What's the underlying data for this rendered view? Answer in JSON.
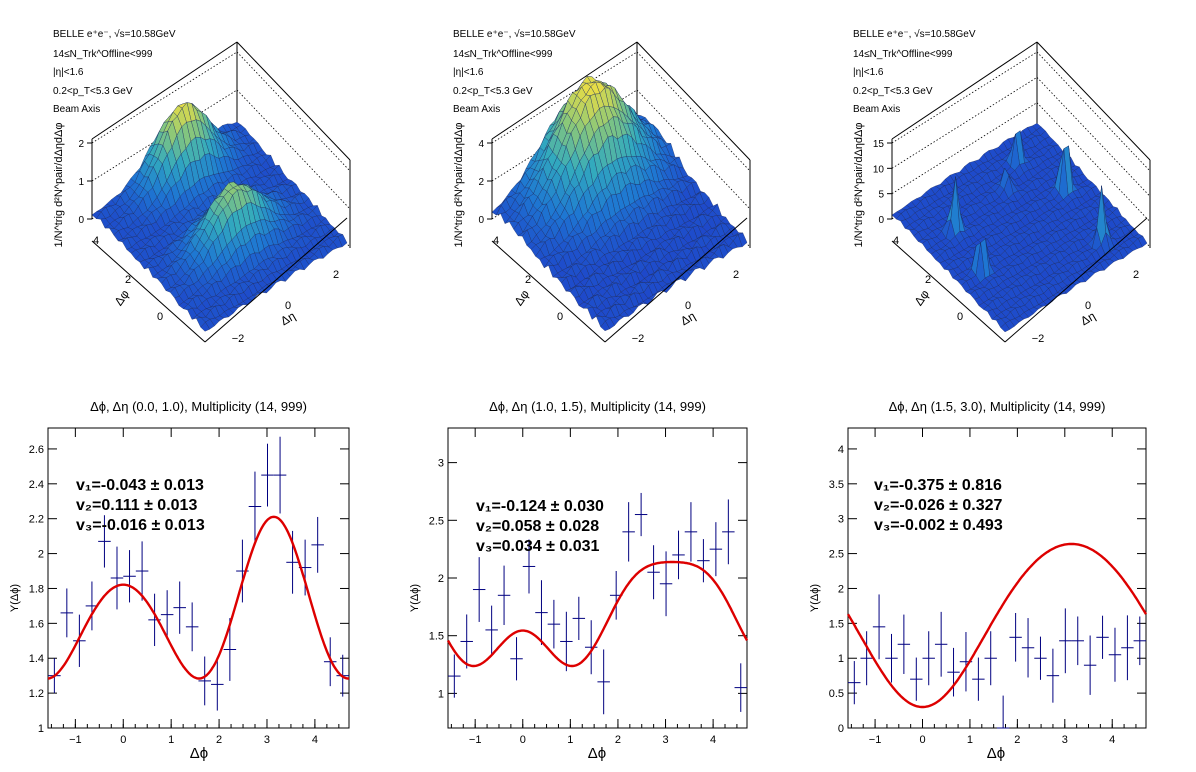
{
  "top_panels": [
    {
      "info_lines": [
        "BELLE e⁺e⁻, √s=10.58GeV",
        "14≤N_Trk^Offline<999",
        "|η|<1.6",
        "0.2<p_T<5.3 GeV",
        "Beam Axis"
      ],
      "zlabel": "1/N^trig d²N^pair/dΔηdΔφ",
      "z_ticks": [
        "0",
        "1",
        "2"
      ],
      "phi_ticks": [
        "0",
        "2",
        "4"
      ],
      "eta_ticks": [
        "−2",
        "0",
        "2"
      ],
      "xlabel": "Δφ",
      "ylabel": "Δη"
    },
    {
      "info_lines": [
        "BELLE e⁺e⁻, √s=10.58GeV",
        "14≤N_Trk^Offline<999",
        "|η|<1.6",
        "0.2<p_T<5.3 GeV",
        "Beam Axis"
      ],
      "zlabel": "1/N^trig d²N^pair/dΔηdΔφ",
      "z_ticks": [
        "0",
        "2",
        "4"
      ],
      "phi_ticks": [
        "0",
        "2",
        "4"
      ],
      "eta_ticks": [
        "−2",
        "0",
        "2"
      ],
      "xlabel": "Δφ",
      "ylabel": "Δη"
    },
    {
      "info_lines": [
        "BELLE e⁺e⁻, √s=10.58GeV",
        "14≤N_Trk^Offline<999",
        "|η|<1.6",
        "0.2<p_T<5.3 GeV",
        "Beam Axis"
      ],
      "zlabel": "1/N^trig d²N^pair/dΔηdΔφ",
      "z_ticks": [
        "0",
        "5",
        "10",
        "15"
      ],
      "phi_ticks": [
        "0",
        "2",
        "4"
      ],
      "eta_ticks": [
        "−2",
        "0",
        "2"
      ],
      "xlabel": "Δφ",
      "ylabel": "Δη"
    }
  ],
  "chart_data": [
    {
      "type": "scatter",
      "title": "Δϕ, Δη (0.0, 1.0), Multiplicity (14, 999)",
      "xlabel": "Δϕ",
      "ylabel": "Y(Δϕ)",
      "xlim": [
        -1.571,
        4.712
      ],
      "ylim": [
        1.0,
        2.72
      ],
      "x_ticks": [
        -1,
        0,
        1,
        2,
        3,
        4
      ],
      "y_ticks": [
        1,
        1.2,
        1.4,
        1.6,
        1.8,
        2,
        2.2,
        2.4,
        2.6
      ],
      "fit": {
        "a0": 1.65,
        "v1": -0.043,
        "v2": 0.111,
        "v3": -0.016
      },
      "fit_labels": [
        "v₁=-0.043 ± 0.013",
        "v₂=0.111 ± 0.013",
        "v₃=-0.016 ± 0.013"
      ],
      "points": {
        "x": [
          -1.438,
          -1.178,
          -0.916,
          -0.654,
          -0.393,
          -0.131,
          0.131,
          0.393,
          0.654,
          0.916,
          1.178,
          1.438,
          1.7,
          1.963,
          2.225,
          2.487,
          2.749,
          3.011,
          3.273,
          3.534,
          3.796,
          4.058,
          4.32,
          4.581
        ],
        "y": [
          1.3,
          1.66,
          1.5,
          1.7,
          2.07,
          1.86,
          1.87,
          1.9,
          1.62,
          1.65,
          1.69,
          1.58,
          1.27,
          1.25,
          1.45,
          1.9,
          2.27,
          2.45,
          2.45,
          1.95,
          1.92,
          2.05,
          1.38,
          1.3
        ],
        "err": [
          0.1,
          0.14,
          0.15,
          0.14,
          0.15,
          0.18,
          0.15,
          0.17,
          0.15,
          0.14,
          0.15,
          0.14,
          0.14,
          0.15,
          0.18,
          0.18,
          0.2,
          0.18,
          0.22,
          0.18,
          0.16,
          0.16,
          0.14,
          0.12
        ]
      }
    },
    {
      "type": "scatter",
      "title": "Δϕ, Δη (1.0, 1.5), Multiplicity (14, 999)",
      "xlabel": "Δϕ",
      "ylabel": "Y(Δϕ)",
      "xlim": [
        -1.571,
        4.712
      ],
      "ylim": [
        0.7,
        3.3
      ],
      "x_ticks": [
        -1,
        0,
        1,
        2,
        3,
        4
      ],
      "y_ticks": [
        1,
        1.5,
        2,
        2.5,
        3
      ],
      "fit": {
        "a0": 1.65,
        "v1": -0.124,
        "v2": 0.058,
        "v3": 0.034
      },
      "fit_labels": [
        "v₁=-0.124 ± 0.030",
        "v₂=0.058 ± 0.028",
        "v₃=0.034 ± 0.031"
      ],
      "points": {
        "x": [
          -1.438,
          -1.178,
          -0.916,
          -0.654,
          -0.393,
          -0.131,
          0.131,
          0.393,
          0.654,
          0.916,
          1.178,
          1.438,
          1.7,
          1.963,
          2.225,
          2.487,
          2.749,
          3.011,
          3.273,
          3.534,
          3.796,
          4.058,
          4.32,
          4.581
        ],
        "y": [
          1.15,
          1.45,
          1.9,
          1.55,
          1.85,
          1.3,
          2.1,
          1.7,
          1.6,
          1.45,
          1.65,
          1.4,
          1.1,
          1.85,
          2.4,
          2.55,
          2.05,
          1.95,
          2.2,
          2.4,
          2.15,
          2.25,
          2.4,
          1.05
        ]
      }
    },
    {
      "type": "scatter",
      "title": "Δϕ, Δη (1.5, 3.0), Multiplicity (14, 999)",
      "xlabel": "Δϕ",
      "ylabel": "Y(Δϕ)",
      "xlim": [
        -1.571,
        4.712
      ],
      "ylim": [
        0,
        4.3
      ],
      "x_ticks": [
        -1,
        0,
        1,
        2,
        3,
        4
      ],
      "y_ticks": [
        0,
        0.5,
        1,
        1.5,
        2,
        2.5,
        3,
        3.5,
        4
      ],
      "fit": {
        "a0": 1.55,
        "v1": -0.375,
        "v2": -0.026,
        "v3": -0.002
      },
      "fit_labels": [
        "v₁=-0.375 ± 0.816",
        "v₂=-0.026 ± 0.327",
        "v₃=-0.002 ± 0.493"
      ],
      "points": {
        "x": [
          -1.438,
          -1.178,
          -0.916,
          -0.654,
          -0.393,
          -0.131,
          0.131,
          0.393,
          0.654,
          0.916,
          1.178,
          1.438,
          1.7,
          1.963,
          2.225,
          2.487,
          2.749,
          3.011,
          3.273,
          3.534,
          3.796,
          4.058,
          4.32,
          4.581
        ],
        "y": [
          0.65,
          1.0,
          1.45,
          1.0,
          1.2,
          0.7,
          1.0,
          1.2,
          0.8,
          0.95,
          0.7,
          1.0,
          0.0,
          1.3,
          1.15,
          1.0,
          0.75,
          1.25,
          1.25,
          0.9,
          1.3,
          1.05,
          1.15,
          1.25
        ]
      }
    }
  ]
}
